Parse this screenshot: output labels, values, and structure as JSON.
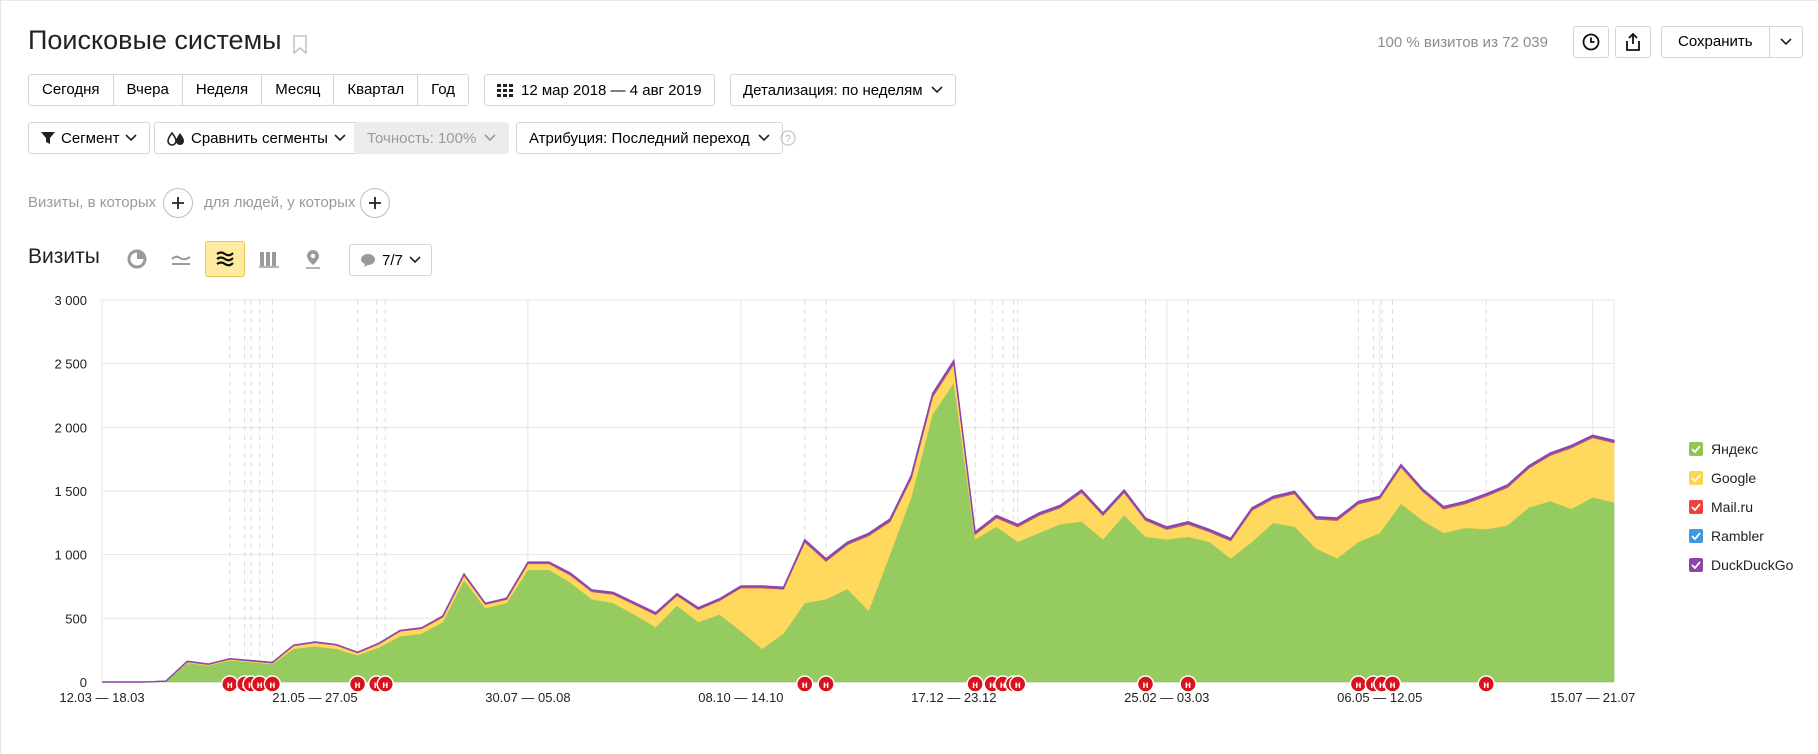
{
  "header": {
    "title": "Поисковые системы",
    "visit_info": "100 % визитов из 72 039",
    "save_label": "Сохранить"
  },
  "periods": [
    "Сегодня",
    "Вчера",
    "Неделя",
    "Месяц",
    "Квартал",
    "Год"
  ],
  "date_range": "12 мар 2018 — 4 авг 2019",
  "detail": "Детализация: по неделям",
  "filters": {
    "segment": "Сегмент",
    "compare": "Сравнить сегменты",
    "accuracy": "Точность: 100%",
    "attribution": "Атрибуция: Последний переход"
  },
  "conditions": {
    "visits_label": "Визиты, в которых",
    "people_label": "для людей, у которых"
  },
  "section": {
    "title": "Визиты",
    "annotations_count": "7/7"
  },
  "colors": {
    "yandex": "#8cc751",
    "google": "#ffd550",
    "mailru": "#f0413d",
    "rambler": "#3d99e0",
    "duckduckgo": "#8e44ad",
    "annotation": "#d8131d",
    "active_chart_type": "#ffeba0"
  },
  "icons": {
    "bookmark": "bookmark-icon",
    "history": "clock-icon",
    "export": "share-icon",
    "calendar": "calendar-icon",
    "segment": "filter-icon",
    "compare": "drops-icon",
    "help": "question-icon",
    "pie": "pie-chart-icon",
    "line": "line-chart-icon",
    "area": "stacked-area-icon",
    "bar": "bar-chart-icon",
    "map": "map-pin-icon",
    "notes": "speech-bubble-icon"
  },
  "chart_data": {
    "type": "area",
    "stacked": true,
    "ylim": [
      0,
      3000
    ],
    "yticks": [
      "0",
      "500",
      "1 000",
      "1 500",
      "2 000",
      "2 500",
      "3 000"
    ],
    "x_tick_labels": [
      "12.03 — 18.03",
      "21.05 — 27.05",
      "30.07 — 05.08",
      "08.10 — 14.10",
      "17.12 — 23.12",
      "25.02 — 03.03",
      "06.05 — 12.05",
      "15.07 — 21.07"
    ],
    "x_tick_positions": [
      0,
      10,
      20,
      30,
      40,
      50,
      60,
      70
    ],
    "grid": true,
    "legend_position": "right",
    "legend": [
      "Яндекс",
      "Google",
      "Mail.ru",
      "Rambler",
      "DuckDuckGo"
    ],
    "series": [
      {
        "name": "Яндекс",
        "values": [
          0,
          0,
          0,
          5,
          150,
          130,
          170,
          155,
          140,
          260,
          280,
          260,
          210,
          270,
          360,
          380,
          470,
          800,
          580,
          620,
          880,
          880,
          780,
          650,
          620,
          530,
          430,
          600,
          470,
          530,
          400,
          260,
          380,
          620,
          650,
          730,
          560,
          1000,
          1450,
          2100,
          2350,
          1120,
          1220,
          1100,
          1170,
          1240,
          1260,
          1120,
          1310,
          1140,
          1120,
          1140,
          1100,
          970,
          1100,
          1250,
          1220,
          1050,
          970,
          1100,
          1170,
          1400,
          1270,
          1170,
          1210,
          1200,
          1230,
          1370,
          1420,
          1360,
          1450,
          1410
        ]
      },
      {
        "name": "Google",
        "values": [
          0,
          0,
          0,
          2,
          10,
          8,
          10,
          10,
          10,
          25,
          30,
          30,
          20,
          30,
          40,
          40,
          40,
          40,
          30,
          30,
          50,
          50,
          60,
          60,
          70,
          80,
          100,
          80,
          100,
          110,
          340,
          480,
          350,
          480,
          300,
          350,
          590,
          260,
          150,
          140,
          150,
          40,
          70,
          120,
          140,
          130,
          230,
          190,
          180,
          130,
          80,
          100,
          80,
          140,
          250,
          190,
          260,
          230,
          300,
          300,
          270,
          290,
          230,
          190,
          190,
          260,
          300,
          310,
          360,
          480,
          470,
          470
        ]
      },
      {
        "name": "Mail.ru",
        "values": [
          0,
          0,
          0,
          0,
          2,
          2,
          2,
          2,
          2,
          3,
          3,
          3,
          2,
          3,
          4,
          4,
          5,
          6,
          5,
          5,
          6,
          6,
          6,
          5,
          5,
          5,
          5,
          5,
          5,
          5,
          5,
          5,
          5,
          6,
          6,
          6,
          6,
          8,
          8,
          10,
          10,
          6,
          6,
          6,
          6,
          6,
          6,
          6,
          6,
          6,
          6,
          6,
          6,
          6,
          6,
          6,
          6,
          6,
          6,
          6,
          6,
          6,
          6,
          6,
          6,
          6,
          6,
          6,
          6,
          6,
          6,
          6
        ]
      },
      {
        "name": "Rambler",
        "values": [
          0,
          0,
          0,
          0,
          1,
          1,
          1,
          1,
          1,
          1,
          1,
          1,
          1,
          1,
          1,
          1,
          2,
          2,
          2,
          2,
          2,
          2,
          2,
          2,
          2,
          2,
          2,
          2,
          2,
          2,
          2,
          2,
          2,
          3,
          3,
          3,
          3,
          3,
          4,
          5,
          5,
          3,
          3,
          3,
          3,
          3,
          3,
          3,
          3,
          3,
          3,
          3,
          3,
          3,
          3,
          3,
          3,
          3,
          3,
          3,
          3,
          3,
          3,
          3,
          3,
          3,
          3,
          3,
          3,
          3,
          3,
          3
        ]
      },
      {
        "name": "DuckDuckGo",
        "values": [
          0,
          0,
          0,
          0,
          1,
          1,
          1,
          1,
          1,
          1,
          1,
          1,
          1,
          1,
          1,
          1,
          2,
          2,
          2,
          2,
          5,
          5,
          8,
          8,
          8,
          8,
          8,
          8,
          8,
          8,
          8,
          8,
          8,
          10,
          10,
          10,
          10,
          10,
          12,
          12,
          12,
          10,
          10,
          10,
          10,
          10,
          10,
          10,
          10,
          10,
          10,
          10,
          10,
          10,
          10,
          10,
          10,
          10,
          10,
          10,
          10,
          10,
          10,
          10,
          10,
          10,
          10,
          10,
          10,
          10,
          10,
          10
        ]
      }
    ],
    "annotation_positions": [
      6,
      6.7,
      7,
      7.4,
      8,
      12,
      12.9,
      13.3,
      33,
      34,
      41,
      41.8,
      42.3,
      42.8,
      43,
      49,
      51,
      59,
      59.7,
      60.1,
      60.6,
      65
    ]
  }
}
